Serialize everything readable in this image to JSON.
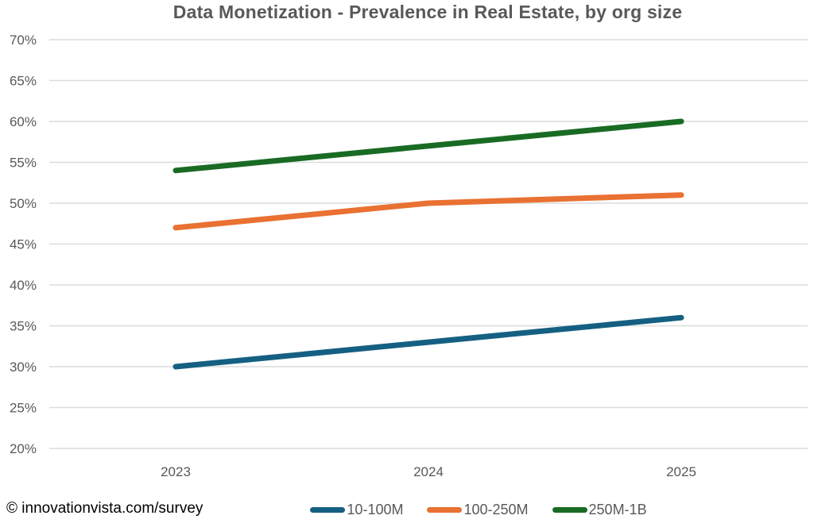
{
  "title": "Data Monetization - Prevalence in Real Estate, by org size",
  "footer": {
    "source": "© innovationvista.com/survey"
  },
  "colors": {
    "title_text": "#595959",
    "axis_text": "#595959",
    "gridline": "#DCDCDC",
    "footer_text": "#000000",
    "background": "#FFFFFF"
  },
  "chart_data": {
    "type": "line",
    "title": "Data Monetization - Prevalence in Real Estate, by org size",
    "categories": [
      "2023",
      "2024",
      "2025"
    ],
    "series": [
      {
        "name": "10-100M",
        "color": "#156082",
        "values": [
          30,
          33,
          36
        ]
      },
      {
        "name": "100-250M",
        "color": "#E97132",
        "values": [
          47,
          50,
          51
        ]
      },
      {
        "name": "250M-1B",
        "color": "#196B24",
        "values": [
          54,
          57,
          60
        ]
      }
    ],
    "xlabel": "",
    "ylabel": "",
    "ylim": [
      20,
      70
    ],
    "ytick_step": 5,
    "ytick_suffix": "%",
    "grid": "horizontal",
    "legend_position": "bottom"
  }
}
